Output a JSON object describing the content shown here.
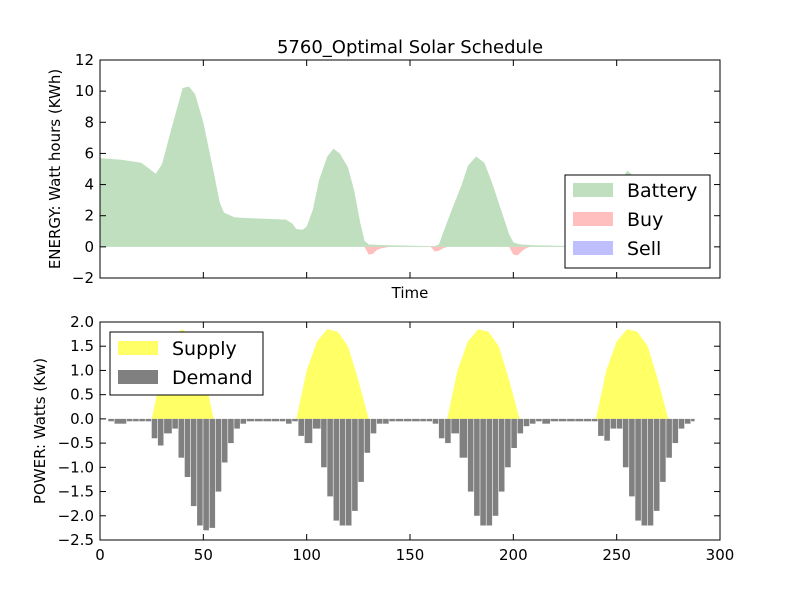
{
  "chart_data": [
    {
      "type": "area",
      "title": "5760_Optimal Solar Schedule",
      "xlabel": "Time",
      "ylabel": "ENERGY: Watt hours (KWh)",
      "xlim": [
        0,
        300
      ],
      "ylim": [
        -2,
        12
      ],
      "yticks": [
        -2,
        0,
        2,
        4,
        6,
        8,
        10,
        12
      ],
      "yticklabels": [
        "−2",
        "0",
        "2",
        "4",
        "6",
        "8",
        "10",
        "12"
      ],
      "legend_position": "lower-right",
      "legend": [
        "Battery",
        "Buy",
        "Sell"
      ],
      "colors": {
        "battery": "#7fbf7f",
        "buy": "#ff7f7f",
        "sell": "#7f7fff"
      },
      "series": [
        {
          "name": "Battery",
          "x": [
            0,
            10,
            20,
            25,
            27,
            30,
            35,
            40,
            43,
            46,
            50,
            55,
            58,
            60,
            65,
            70,
            80,
            90,
            93,
            95,
            98,
            100,
            103,
            106,
            110,
            113,
            116,
            120,
            123,
            126,
            128,
            130,
            140,
            160,
            162,
            164,
            166,
            170,
            175,
            178,
            182,
            186,
            190,
            194,
            198,
            200,
            202,
            204,
            210,
            230,
            240,
            244,
            246,
            250,
            255,
            257,
            260,
            264,
            268,
            270,
            275,
            287,
            288
          ],
          "values": [
            5.7,
            5.6,
            5.4,
            4.9,
            4.7,
            5.3,
            7.8,
            10.2,
            10.3,
            9.8,
            8.0,
            4.8,
            2.8,
            2.2,
            1.9,
            1.85,
            1.8,
            1.75,
            1.5,
            1.15,
            1.1,
            1.3,
            2.4,
            4.3,
            5.8,
            6.3,
            6.0,
            5.1,
            3.6,
            1.5,
            0.4,
            0.15,
            0.1,
            0.05,
            0.05,
            0.15,
            0.9,
            2.3,
            4.0,
            5.2,
            5.8,
            5.4,
            4.0,
            2.4,
            0.8,
            0.3,
            0.2,
            0.15,
            0.1,
            0.05,
            0.2,
            0.8,
            1.8,
            3.6,
            4.9,
            4.7,
            3.9,
            2.3,
            0.9,
            0.3,
            0.05,
            0.05,
            0
          ]
        },
        {
          "name": "Buy",
          "x": [
            128,
            130,
            132,
            134,
            136,
            138,
            140,
            160,
            162,
            164,
            166,
            168,
            198,
            200,
            202,
            204,
            206,
            208,
            270,
            272,
            274,
            276,
            278,
            280,
            282
          ],
          "values": [
            0,
            -0.5,
            -0.45,
            -0.2,
            -0.1,
            -0.05,
            0,
            0,
            -0.3,
            -0.25,
            -0.1,
            0,
            0,
            -0.5,
            -0.55,
            -0.3,
            -0.1,
            0,
            0,
            -0.55,
            -0.5,
            -0.35,
            -0.25,
            -0.1,
            0
          ]
        },
        {
          "name": "Sell",
          "x": [
            230,
            232,
            234,
            236,
            238,
            240
          ],
          "values": [
            0,
            0.05,
            0.1,
            0.1,
            0.05,
            0
          ]
        }
      ]
    },
    {
      "type": "bar",
      "title": "",
      "xlabel": "",
      "ylabel": "POWER: Watts (Kw)",
      "xlim": [
        0,
        300
      ],
      "ylim": [
        -2.5,
        2.0
      ],
      "xticks": [
        0,
        50,
        100,
        150,
        200,
        250,
        300
      ],
      "xticklabels": [
        "0",
        "50",
        "100",
        "150",
        "200",
        "250",
        "300"
      ],
      "yticks": [
        -2.5,
        -2.0,
        -1.5,
        -1.0,
        -0.5,
        0.0,
        0.5,
        1.0,
        1.5,
        2.0
      ],
      "yticklabels": [
        "−2.5",
        "−2.0",
        "−1.5",
        "−1.0",
        "−0.5",
        "0.0",
        "0.5",
        "1.0",
        "1.5",
        "2.0"
      ],
      "legend_position": "upper-left",
      "legend": [
        "Supply",
        "Demand"
      ],
      "colors": {
        "supply": "#ffff66",
        "demand": "#808080"
      },
      "series": [
        {
          "name": "Supply",
          "x": [
            25,
            30,
            35,
            40,
            45,
            50,
            55,
            95,
            100,
            105,
            110,
            115,
            120,
            125,
            130,
            168,
            173,
            178,
            183,
            188,
            193,
            198,
            203,
            240,
            245,
            250,
            255,
            260,
            265,
            270,
            275
          ],
          "values": [
            0,
            1.0,
            1.7,
            1.85,
            1.6,
            1.0,
            0,
            0,
            1.0,
            1.6,
            1.85,
            1.8,
            1.5,
            0.8,
            0,
            0,
            1.0,
            1.6,
            1.85,
            1.8,
            1.5,
            0.8,
            0,
            0,
            1.0,
            1.6,
            1.85,
            1.8,
            1.5,
            0.8,
            0
          ]
        },
        {
          "name": "Demand",
          "x": [
            0,
            4,
            7,
            13,
            16,
            19,
            22,
            25,
            28,
            31,
            35,
            38,
            41,
            44,
            47,
            50,
            53,
            56,
            59,
            62,
            65,
            68,
            71,
            75,
            79,
            83,
            87,
            90,
            93,
            96,
            99,
            103,
            107,
            110,
            113,
            116,
            119,
            122,
            125,
            128,
            131,
            134,
            137,
            140,
            143,
            147,
            151,
            155,
            158,
            161,
            164,
            167,
            170,
            174,
            178,
            181,
            184,
            187,
            190,
            193,
            196,
            199,
            202,
            205,
            208,
            211,
            214,
            218,
            222,
            226,
            230,
            234,
            238,
            241,
            244,
            247,
            250,
            253,
            256,
            259,
            262,
            265,
            268,
            271,
            274,
            277,
            280,
            283,
            286
          ],
          "values": [
            0,
            -0.05,
            -0.1,
            -0.05,
            -0.05,
            -0.05,
            -0.05,
            -0.4,
            -0.55,
            -0.3,
            -0.2,
            -0.8,
            -1.2,
            -1.8,
            -2.2,
            -2.3,
            -2.25,
            -1.5,
            -0.9,
            -0.5,
            -0.2,
            -0.1,
            -0.05,
            -0.05,
            -0.05,
            -0.05,
            -0.05,
            -0.1,
            -0.05,
            -0.35,
            -0.5,
            -0.2,
            -1.0,
            -1.6,
            -2.1,
            -2.2,
            -2.2,
            -1.9,
            -1.3,
            -0.7,
            -0.3,
            -0.1,
            -0.1,
            -0.05,
            -0.05,
            -0.05,
            -0.05,
            -0.05,
            -0.05,
            -0.1,
            -0.4,
            -0.5,
            -0.3,
            -0.8,
            -1.5,
            -2.0,
            -2.2,
            -2.2,
            -2.0,
            -1.5,
            -1.0,
            -0.6,
            -0.3,
            -0.15,
            -0.1,
            -0.05,
            -0.1,
            -0.05,
            -0.05,
            -0.05,
            -0.05,
            -0.05,
            -0.05,
            -0.35,
            -0.45,
            -0.2,
            -0.2,
            -1.0,
            -1.6,
            -2.1,
            -2.2,
            -2.2,
            -1.9,
            -1.3,
            -0.8,
            -0.5,
            -0.2,
            -0.1,
            -0.05
          ]
        }
      ]
    }
  ]
}
